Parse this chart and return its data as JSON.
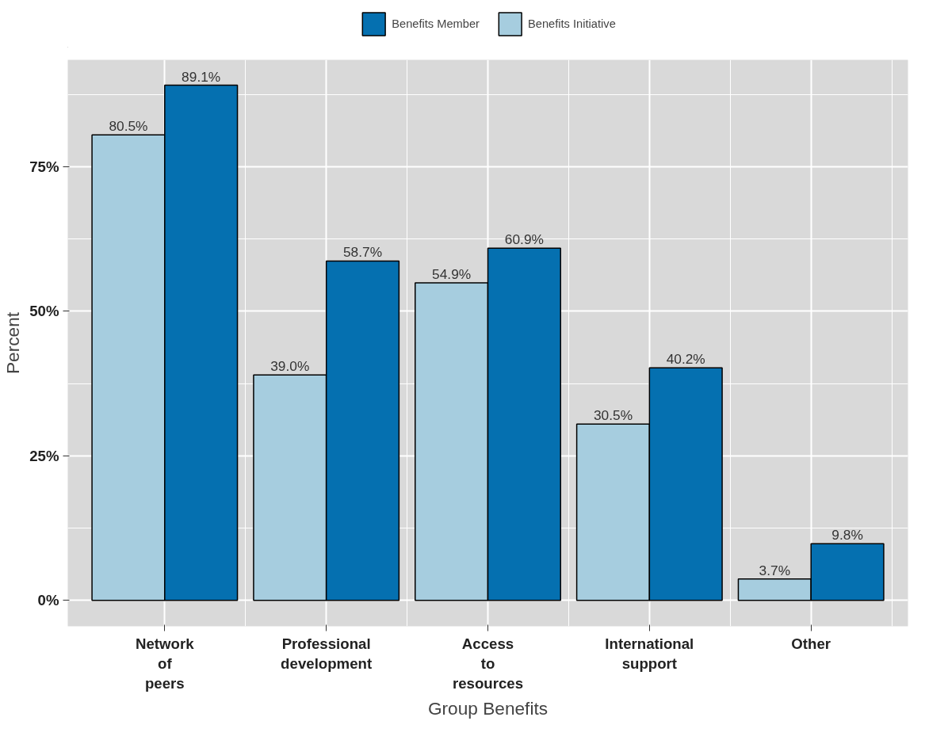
{
  "chart_data": {
    "type": "bar",
    "xlabel": "Group Benefits",
    "ylabel": "Percent",
    "categories": [
      "Network\nof\npeers",
      "Professional\ndevelopment",
      "Access\nto\nresources",
      "International\nsupport",
      "Other"
    ],
    "series": [
      {
        "name": "Benefits Initiative",
        "color": "#a6cddf",
        "values": [
          80.5,
          39.0,
          54.9,
          30.5,
          3.7
        ],
        "value_labels": [
          "80.5%",
          "39.0%",
          "54.9%",
          "30.5%",
          "3.7%"
        ]
      },
      {
        "name": "Benefits Member",
        "color": "#0570b0",
        "values": [
          89.1,
          58.7,
          60.9,
          40.2,
          9.8
        ],
        "value_labels": [
          "89.1%",
          "58.7%",
          "60.9%",
          "40.2%",
          "9.8%"
        ]
      }
    ],
    "ylim": [
      -4.5,
      93.5
    ],
    "yticks": [
      {
        "value": 0,
        "label": "0%"
      },
      {
        "value": 25,
        "label": "25%"
      },
      {
        "value": 50,
        "label": "50%"
      },
      {
        "value": 75,
        "label": "75%"
      }
    ],
    "grid": true,
    "legend": "top"
  }
}
